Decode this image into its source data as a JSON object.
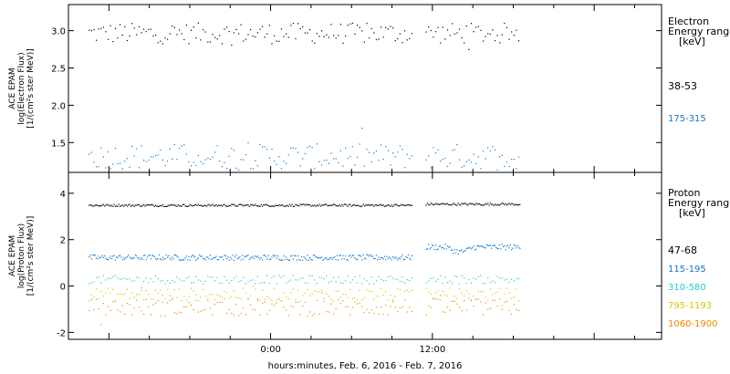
{
  "x_axis": {
    "label": "hours:minutes, Feb.  6, 2016 - Feb.  7, 2016",
    "ticks": [
      "0:00",
      "12:00"
    ]
  },
  "chart_data": [
    {
      "type": "scatter",
      "ylabel_lines": [
        "ACE EPAM",
        "log(Electron Flux)",
        "[1/(cm²s ster MeV)]"
      ],
      "ylim": [
        1.1,
        3.35
      ],
      "yticks": [
        1.5,
        2.0,
        2.5,
        3.0
      ],
      "ytick_labels": [
        "1.5",
        "2.0",
        "2.5",
        "3.0"
      ],
      "legend": {
        "title_lines": [
          "Electron",
          "Energy ranges",
          "[keV]"
        ],
        "entries": [
          {
            "label": "38-53",
            "color": "#000000"
          },
          {
            "label": "175-315",
            "color": "#1177cc"
          }
        ]
      },
      "time_range_hours": [
        -15,
        29
      ],
      "data_segments_hours": [
        [
          -13.5,
          10.5
        ],
        [
          11.5,
          18.5
        ]
      ],
      "series": [
        {
          "name": "38-53",
          "color": "#000000",
          "mean": 2.97,
          "spread": 0.14
        },
        {
          "name": "175-315",
          "color": "#1177cc",
          "mean": 1.32,
          "spread": 0.17
        }
      ]
    },
    {
      "type": "scatter",
      "ylabel_lines": [
        "ACE EPAM",
        "log(Proton Flux)",
        "[1/(cm²s ster MeV)]"
      ],
      "ylim": [
        -2.3,
        4.9
      ],
      "yticks": [
        -2,
        0,
        2,
        4
      ],
      "ytick_labels": [
        "-2",
        "0",
        "2",
        "4"
      ],
      "legend": {
        "title_lines": [
          "Proton",
          "Energy ranges",
          "[keV]"
        ],
        "entries": [
          {
            "label": "47-68",
            "color": "#000000"
          },
          {
            "label": "115-195",
            "color": "#1177cc"
          },
          {
            "label": "310-580",
            "color": "#22cccc"
          },
          {
            "label": "795-1193",
            "color": "#cccc00"
          },
          {
            "label": "1060-1900",
            "color": "#ee8800"
          }
        ]
      },
      "time_range_hours": [
        -15,
        29
      ],
      "data_segments_hours": [
        [
          -13.5,
          10.5
        ],
        [
          11.5,
          18.5
        ]
      ],
      "series": [
        {
          "name": "47-68",
          "color": "#000000",
          "mean": 3.5,
          "spread": 0.05,
          "mean_after_gap": 3.55
        },
        {
          "name": "115-195",
          "color": "#1177cc",
          "mean": 1.25,
          "spread": 0.12,
          "mean_after_gap": 1.7
        },
        {
          "name": "310-580",
          "color": "#22cccc",
          "mean": 0.3,
          "spread": 0.18
        },
        {
          "name": "795-1193",
          "color": "#cccc00",
          "mean": -0.35,
          "spread": 0.28
        },
        {
          "name": "1060-1900",
          "color": "#ee8800",
          "mean": -0.9,
          "spread": 0.38
        }
      ]
    }
  ]
}
